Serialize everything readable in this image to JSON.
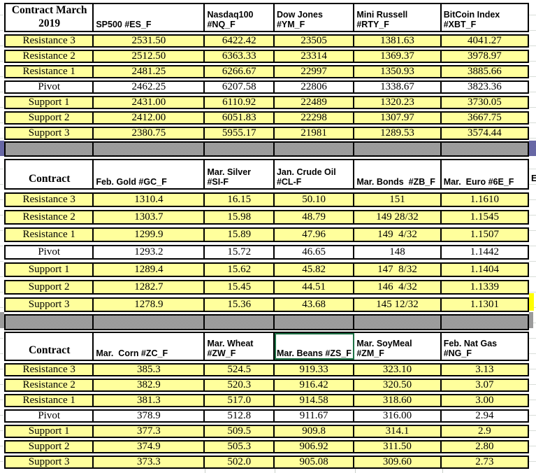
{
  "colors": {
    "cell_yellow": "#ffff9c",
    "pivot_white": "#ffffff",
    "separator_gray": "#9d9d9d",
    "separator_edge_purple": "#6666a6",
    "selection_green": "#1e7145",
    "border_black": "#000000"
  },
  "edge_text": "E",
  "selection": {
    "section": 2,
    "column": 2
  },
  "sections": [
    {
      "label_header": "Contract March\n2019",
      "columns": [
        "SP500 #ES_F",
        "Nasdaq100\n#NQ_F",
        "Dow Jones\n#YM_F",
        "Mini Russell\n#RTY_F",
        "BitCoin Index\n#XBT_F"
      ],
      "rows": [
        {
          "label": "Resistance 3",
          "pivot": false,
          "values": [
            "2531.50",
            "6422.42",
            "23505",
            "1381.63",
            "4041.27"
          ]
        },
        {
          "label": "Resistance 2",
          "pivot": false,
          "values": [
            "2512.50",
            "6363.33",
            "23314",
            "1369.37",
            "3978.97"
          ]
        },
        {
          "label": "Resistance 1",
          "pivot": false,
          "values": [
            "2481.25",
            "6266.67",
            "22997",
            "1350.93",
            "3885.66"
          ]
        },
        {
          "label": "Pivot",
          "pivot": true,
          "values": [
            "2462.25",
            "6207.58",
            "22806",
            "1338.67",
            "3823.36"
          ]
        },
        {
          "label": "Support 1",
          "pivot": false,
          "values": [
            "2431.00",
            "6110.92",
            "22489",
            "1320.23",
            "3730.05"
          ]
        },
        {
          "label": "Support 2",
          "pivot": false,
          "values": [
            "2412.00",
            "6051.83",
            "22298",
            "1307.97",
            "3667.75"
          ]
        },
        {
          "label": "Support 3",
          "pivot": false,
          "values": [
            "2380.75",
            "5955.17",
            "21981",
            "1289.53",
            "3574.44"
          ]
        }
      ]
    },
    {
      "label_header": "Contract",
      "columns": [
        "Feb. Gold #GC_F",
        "Mar. Silver\n#SI-F",
        "Jan. Crude Oil\n#CL-F",
        "Mar. Bonds  #ZB_F",
        "Mar.  Euro #6E_F"
      ],
      "rows": [
        {
          "label": "Resistance 3",
          "pivot": false,
          "values": [
            "1310.4",
            "16.15",
            "50.10",
            "151",
            "1.1610"
          ]
        },
        {
          "label": "Resistance 2",
          "pivot": false,
          "values": [
            "1303.7",
            "15.98",
            "48.79",
            "149 28/32",
            "1.1545"
          ]
        },
        {
          "label": "Resistance 1",
          "pivot": false,
          "values": [
            "1299.9",
            "15.89",
            "47.96",
            "149  4/32",
            "1.1507"
          ]
        },
        {
          "label": "Pivot",
          "pivot": true,
          "values": [
            "1293.2",
            "15.72",
            "46.65",
            "148",
            "1.1442"
          ]
        },
        {
          "label": "Support 1",
          "pivot": false,
          "values": [
            "1289.4",
            "15.62",
            "45.82",
            "147  8/32",
            "1.1404"
          ]
        },
        {
          "label": "Support 2",
          "pivot": false,
          "values": [
            "1282.7",
            "15.45",
            "44.51",
            "146  4/32",
            "1.1339"
          ]
        },
        {
          "label": "Support 3",
          "pivot": false,
          "values": [
            "1278.9",
            "15.36",
            "43.68",
            "145 12/32",
            "1.1301"
          ]
        }
      ]
    },
    {
      "label_header": "Contract",
      "columns": [
        "Mar.  Corn #ZC_F",
        "Mar. Wheat\n#ZW_F",
        "Mar. Beans #ZS_F",
        "Mar. SoyMeal\n#ZM_F",
        "Feb. Nat Gas\n#NG_F"
      ],
      "rows": [
        {
          "label": "Resistance 3",
          "pivot": false,
          "values": [
            "385.3",
            "524.5",
            "919.33",
            "323.10",
            "3.13"
          ]
        },
        {
          "label": "Resistance 2",
          "pivot": false,
          "values": [
            "382.9",
            "520.3",
            "916.42",
            "320.50",
            "3.07"
          ]
        },
        {
          "label": "Resistance 1",
          "pivot": false,
          "values": [
            "381.3",
            "517.0",
            "914.58",
            "318.60",
            "3.00"
          ]
        },
        {
          "label": "Pivot",
          "pivot": true,
          "values": [
            "378.9",
            "512.8",
            "911.67",
            "316.00",
            "2.94"
          ]
        },
        {
          "label": "Support 1",
          "pivot": false,
          "values": [
            "377.3",
            "509.5",
            "909.8",
            "314.1",
            "2.9"
          ]
        },
        {
          "label": "Support 2",
          "pivot": false,
          "values": [
            "374.9",
            "505.3",
            "906.92",
            "311.50",
            "2.80"
          ]
        },
        {
          "label": "Support 3",
          "pivot": false,
          "values": [
            "373.3",
            "502.0",
            "905.08",
            "309.60",
            "2.73"
          ]
        }
      ]
    }
  ]
}
